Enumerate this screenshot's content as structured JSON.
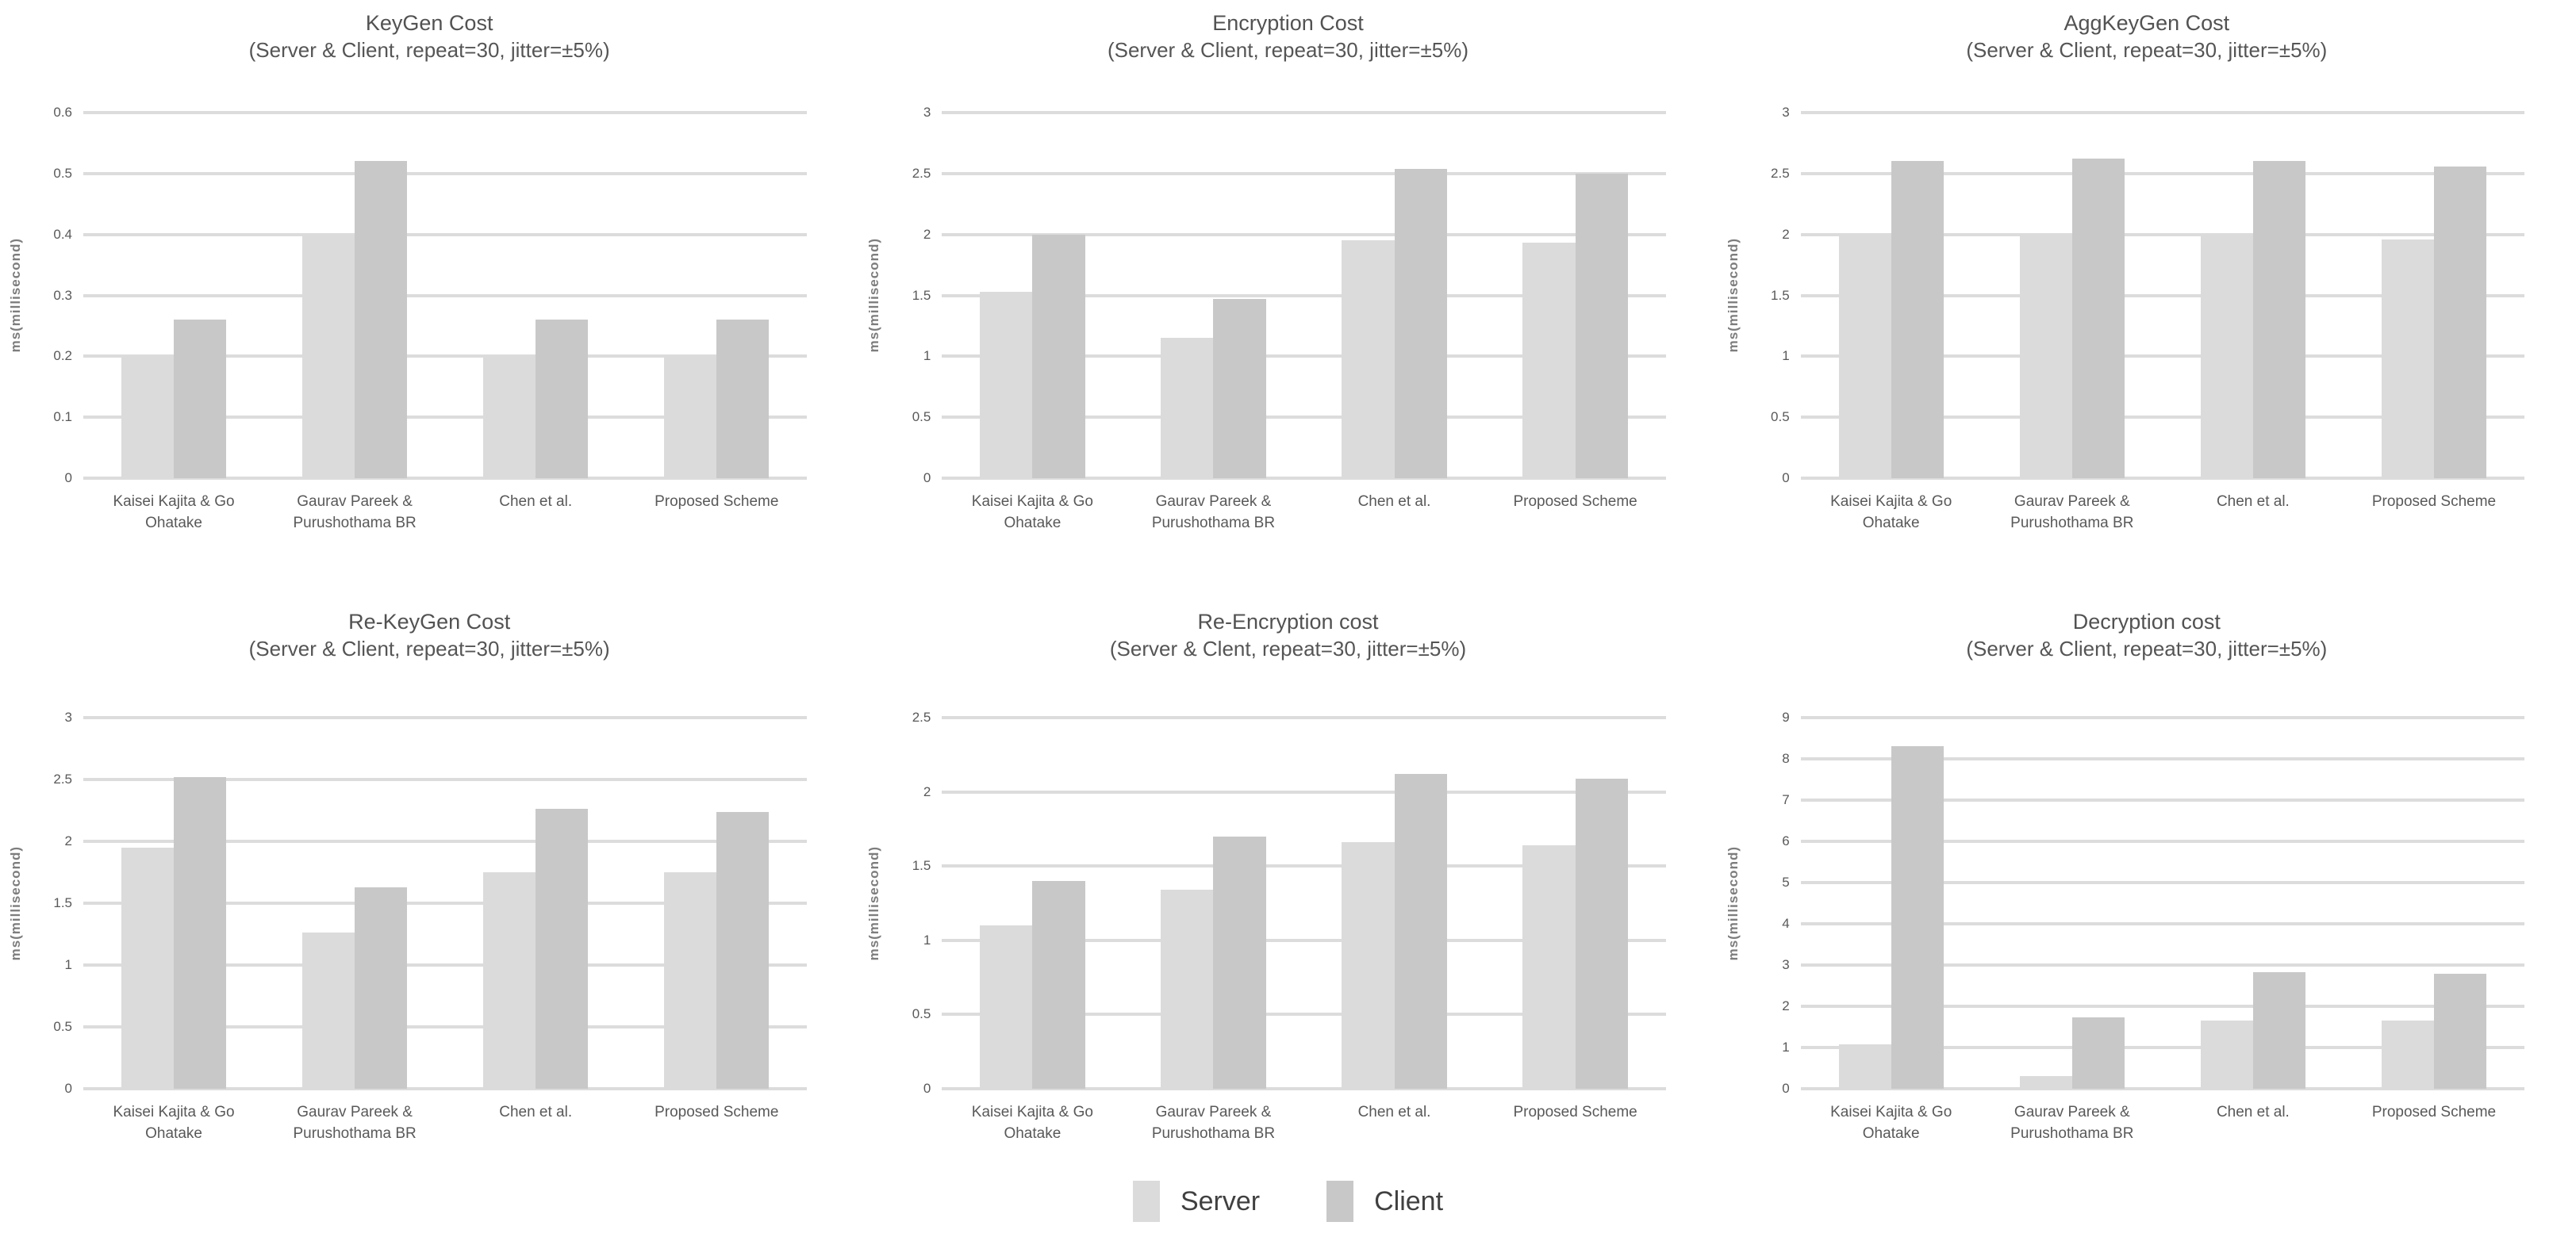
{
  "page": {
    "background": "#ffffff"
  },
  "legend": {
    "position": "bottom-center",
    "items": [
      {
        "label": "Server",
        "color": "#dbdbdb"
      },
      {
        "label": "Client",
        "color": "#c8c8c8"
      }
    ]
  },
  "chart_data": [
    {
      "type": "bar",
      "title": "KeyGen Cost",
      "subtitle": "(Server & Client, repeat=30, jitter=±5%)",
      "ylabel": "ms(millisecond)",
      "xlabel": "",
      "ylim": [
        0,
        0.6
      ],
      "yticks": [
        "0.6",
        "0.5",
        "0.4",
        "0.3",
        "0.2",
        "0.1",
        "0"
      ],
      "grid": true,
      "categories": [
        "Kaisei Kajita & Go Ohatake",
        "Gaurav Pareek & Purushothama BR",
        "Chen et al.",
        "Proposed Scheme"
      ],
      "series": [
        {
          "name": "Server",
          "color": "#dbdbdb",
          "values": [
            0.2,
            0.4,
            0.2,
            0.2
          ]
        },
        {
          "name": "Client",
          "color": "#c8c8c8",
          "values": [
            0.26,
            0.52,
            0.26,
            0.26
          ]
        }
      ]
    },
    {
      "type": "bar",
      "title": "Encryption Cost",
      "subtitle": "(Server & Client, repeat=30, jitter=±5%)",
      "ylabel": "ms(millisecond)",
      "xlabel": "",
      "ylim": [
        0,
        3
      ],
      "yticks": [
        "3",
        "2.5",
        "2",
        "1.5",
        "1",
        "0.5",
        "0"
      ],
      "grid": true,
      "categories": [
        "Kaisei Kajita & Go Ohatake",
        "Gaurav Pareek & Purushothama BR",
        "Chen et al.",
        "Proposed Scheme"
      ],
      "series": [
        {
          "name": "Server",
          "color": "#dbdbdb",
          "values": [
            1.53,
            1.15,
            1.95,
            1.93
          ]
        },
        {
          "name": "Client",
          "color": "#c8c8c8",
          "values": [
            2.0,
            1.47,
            2.54,
            2.5
          ]
        }
      ]
    },
    {
      "type": "bar",
      "title": "AggKeyGen Cost",
      "subtitle": "(Server & Client, repeat=30, jitter=±5%)",
      "ylabel": "ms(millisecond)",
      "xlabel": "",
      "ylim": [
        0,
        3
      ],
      "yticks": [
        "3",
        "2.5",
        "2",
        "1.5",
        "1",
        "0.5",
        "0"
      ],
      "grid": true,
      "categories": [
        "Kaisei Kajita & Go Ohatake",
        "Gaurav Pareek & Purushothama BR",
        "Chen et al.",
        "Proposed Scheme"
      ],
      "series": [
        {
          "name": "Server",
          "color": "#dbdbdb",
          "values": [
            2.0,
            2.0,
            2.0,
            1.96
          ]
        },
        {
          "name": "Client",
          "color": "#c8c8c8",
          "values": [
            2.6,
            2.62,
            2.6,
            2.56
          ]
        }
      ]
    },
    {
      "type": "bar",
      "title": "Re-KeyGen Cost",
      "subtitle": "(Server & Client, repeat=30, jitter=±5%)",
      "ylabel": "ms(millisecond)",
      "xlabel": "",
      "ylim": [
        0,
        3
      ],
      "yticks": [
        "3",
        "2.5",
        "2",
        "1.5",
        "1",
        "0.5",
        "0"
      ],
      "grid": true,
      "categories": [
        "Kaisei Kajita & Go Ohatake",
        "Gaurav Pareek & Purushothama BR",
        "Chen et al.",
        "Proposed Scheme"
      ],
      "series": [
        {
          "name": "Server",
          "color": "#dbdbdb",
          "values": [
            1.95,
            1.26,
            1.75,
            1.75
          ]
        },
        {
          "name": "Client",
          "color": "#c8c8c8",
          "values": [
            2.52,
            1.63,
            2.26,
            2.24
          ]
        }
      ]
    },
    {
      "type": "bar",
      "title": "Re-Encryption cost",
      "subtitle": "(Server & Clent, repeat=30, jitter=±5%)",
      "ylabel": "ms(millisecond)",
      "xlabel": "",
      "ylim": [
        0,
        2.5
      ],
      "yticks": [
        "2.5",
        "2",
        "1.5",
        "1",
        "0.5",
        "0"
      ],
      "grid": true,
      "categories": [
        "Kaisei Kajita & Go Ohatake",
        "Gaurav Pareek & Purushothama BR",
        "Chen et al.",
        "Proposed Scheme"
      ],
      "series": [
        {
          "name": "Server",
          "color": "#dbdbdb",
          "values": [
            1.1,
            1.34,
            1.66,
            1.64
          ]
        },
        {
          "name": "Client",
          "color": "#c8c8c8",
          "values": [
            1.4,
            1.7,
            2.12,
            2.09
          ]
        }
      ]
    },
    {
      "type": "bar",
      "title": "Decryption cost",
      "subtitle": "(Server & Client, repeat=30, jitter=±5%)",
      "ylabel": "ms(millisecond)",
      "xlabel": "",
      "ylim": [
        0,
        9
      ],
      "yticks": [
        "9",
        "8",
        "7",
        "6",
        "5",
        "4",
        "3",
        "2",
        "1",
        "0"
      ],
      "grid": true,
      "categories": [
        "Kaisei Kajita & Go Ohatake",
        "Gaurav Pareek & Purushothama BR",
        "Chen et al.",
        "Proposed Scheme"
      ],
      "series": [
        {
          "name": "Server",
          "color": "#dbdbdb",
          "values": [
            1.07,
            0.3,
            1.65,
            1.65
          ]
        },
        {
          "name": "Client",
          "color": "#c8c8c8",
          "values": [
            8.3,
            1.73,
            2.82,
            2.78
          ]
        }
      ]
    }
  ]
}
